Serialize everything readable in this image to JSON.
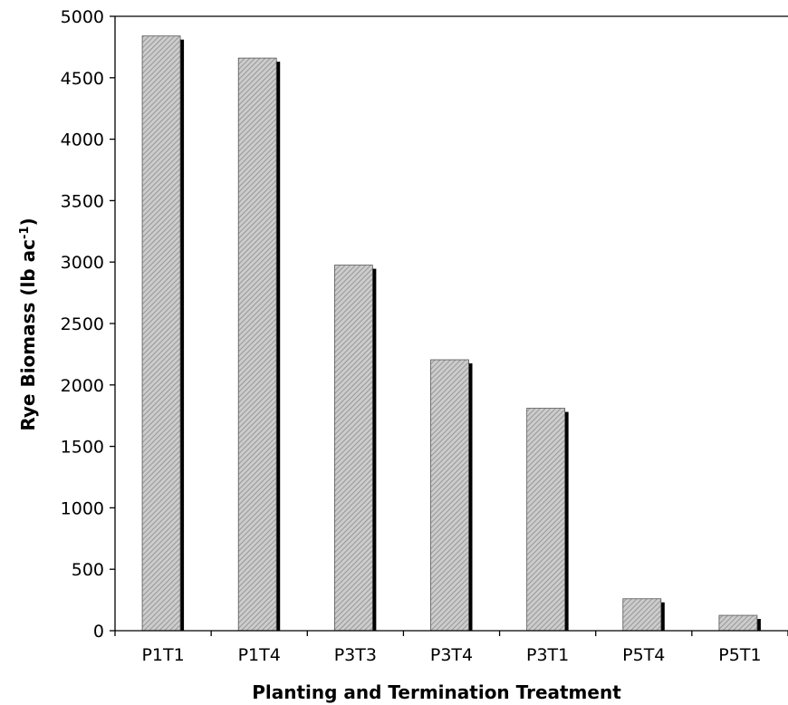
{
  "chart_data": {
    "type": "bar",
    "title": "",
    "xlabel": "Planting and Termination Treatment",
    "ylabel_main": "Rye Biomass (lb ac",
    "ylabel_sup": "-1",
    "ylabel_close": ")",
    "categories": [
      "P1T1",
      "P1T4",
      "P3T3",
      "P3T4",
      "P3T1",
      "P5T4",
      "P5T1"
    ],
    "values": [
      4840,
      4660,
      2975,
      2205,
      1810,
      260,
      125
    ],
    "ylim": [
      0,
      5000
    ],
    "yticks": [
      0,
      500,
      1000,
      1500,
      2000,
      2500,
      3000,
      3500,
      4000,
      4500,
      5000
    ],
    "grid": false,
    "legend": "none",
    "bar_fill": "#c8c8c8",
    "bar_hatch": "#7a7a7a",
    "shadow_color": "#000000"
  }
}
